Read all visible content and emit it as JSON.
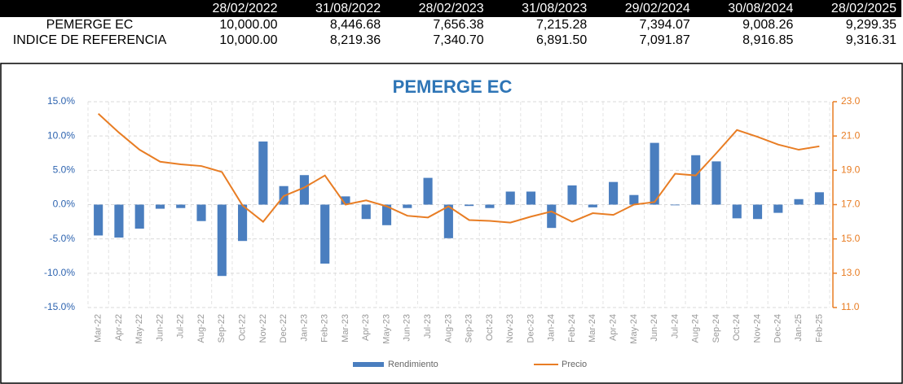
{
  "table": {
    "header": [
      "28/02/2022",
      "31/08/2022",
      "28/02/2023",
      "31/08/2023",
      "29/02/2024",
      "30/08/2024",
      "28/02/2025"
    ],
    "rows": [
      [
        "PEMERGE EC",
        "10,000.00",
        "8,446.68",
        "7,656.38",
        "7,215.28",
        "7,394.07",
        "9,008.26",
        "9,299.35"
      ],
      [
        "INDICE DE REFERENCIA",
        "10,000.00",
        "8,219.36",
        "7,340.70",
        "6,891.50",
        "7,091.87",
        "8,916.85",
        "9,316.31"
      ]
    ]
  },
  "chart_data": {
    "type": "bar",
    "title": "PEMERGE EC",
    "categories": [
      "Mar-22",
      "Apr-22",
      "May-22",
      "Jun-22",
      "Jul-22",
      "Aug-22",
      "Sep-22",
      "Oct-22",
      "Nov-22",
      "Dec-22",
      "Jan-23",
      "Feb-23",
      "Mar-23",
      "Apr-23",
      "May-23",
      "Jun-23",
      "Jul-23",
      "Aug-23",
      "Sep-23",
      "Oct-23",
      "Nov-23",
      "Dec-23",
      "Jan-24",
      "Feb-24",
      "Mar-24",
      "Apr-24",
      "May-24",
      "Jun-24",
      "Jul-24",
      "Aug-24",
      "Sep-24",
      "Oct-24",
      "Nov-24",
      "Dec-24",
      "Jan-25",
      "Feb-25"
    ],
    "series": [
      {
        "name": "Rendimiento",
        "type": "bar",
        "color": "#4a7ebf",
        "axis": "y",
        "values": [
          -4.5,
          -4.8,
          -3.5,
          -0.6,
          -0.5,
          -2.4,
          -10.4,
          -5.3,
          9.2,
          2.7,
          4.3,
          -8.6,
          1.2,
          -2.1,
          -3.0,
          -0.5,
          3.9,
          -4.9,
          -0.2,
          -0.5,
          1.9,
          1.9,
          -3.4,
          2.8,
          -0.4,
          3.3,
          1.4,
          9.0,
          -0.1,
          7.2,
          6.3,
          -2.0,
          -2.1,
          -1.2,
          0.8,
          1.8
        ]
      },
      {
        "name": "Precio",
        "type": "line",
        "color": "#e87d24",
        "axis": "y2",
        "values": [
          22.3,
          21.2,
          20.2,
          19.5,
          19.35,
          19.25,
          18.9,
          16.95,
          16.0,
          17.5,
          18.0,
          18.7,
          17.0,
          17.25,
          16.9,
          16.35,
          16.25,
          16.9,
          16.1,
          16.05,
          15.95,
          16.3,
          16.6,
          16.0,
          16.5,
          16.4,
          17.0,
          17.15,
          18.8,
          18.7,
          20.0,
          21.35,
          20.95,
          20.5,
          20.2,
          20.4
        ]
      }
    ],
    "ylim": [
      -15,
      15
    ],
    "yticks": [
      {
        "value": -15,
        "label": "-15.0%"
      },
      {
        "value": -10,
        "label": "-10.0%"
      },
      {
        "value": -5,
        "label": "-5.0%"
      },
      {
        "value": 0,
        "label": "0.0%"
      },
      {
        "value": 5,
        "label": "5.0%"
      },
      {
        "value": 10,
        "label": "10.0%"
      },
      {
        "value": 15,
        "label": "15.0%"
      }
    ],
    "y2lim": [
      11,
      23
    ],
    "y2ticks": [
      {
        "value": 11,
        "label": "11.0"
      },
      {
        "value": 13,
        "label": "13.0"
      },
      {
        "value": 15,
        "label": "15.0"
      },
      {
        "value": 17,
        "label": "17.0"
      },
      {
        "value": 19,
        "label": "19.0"
      },
      {
        "value": 21,
        "label": "21.0"
      },
      {
        "value": 23,
        "label": "23.0"
      }
    ],
    "grid": true,
    "legend": "bottom"
  }
}
